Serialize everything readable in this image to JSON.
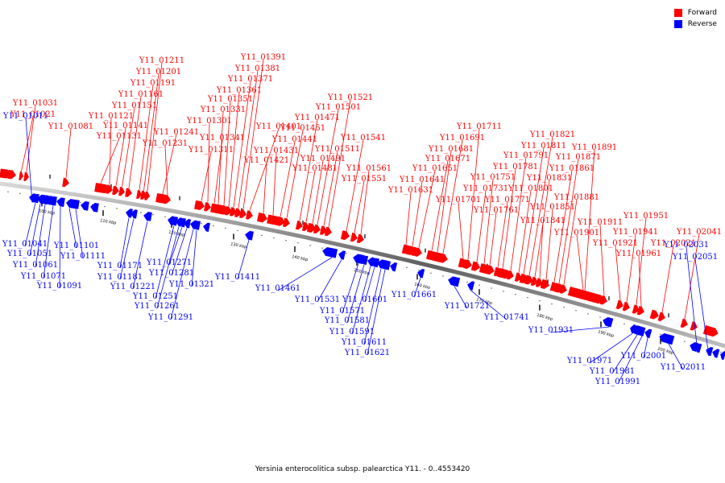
{
  "legend": {
    "forward_label": "Forward",
    "reverse_label": "Reverse",
    "forward_color": "#ff0000",
    "reverse_color": "#0000ff"
  },
  "caption": "Yersinia enterocolitica subsp. palearctica Y11. - 0..4553420",
  "scale_labels": [
    "100 kbp",
    "110 kbp",
    "120 kbp",
    "130 kbp",
    "140 kbp",
    "150 kbp",
    "160 kbp",
    "170 kbp",
    "180 kbp",
    "190 kbp",
    "200 kbp"
  ],
  "forward_genes": [
    "Y11_01031",
    "Y11_01021",
    "Y11_01081",
    "Y11_01131",
    "Y11_01121",
    "Y11_01141",
    "Y11_01151",
    "Y11_01161",
    "Y11_01191",
    "Y11_01201",
    "Y11_01211",
    "Y11_01241",
    "Y11_01231",
    "Y11_01311",
    "Y11_01301",
    "Y11_01341",
    "Y11_01331",
    "Y11_01351",
    "Y11_01361",
    "Y11_01371",
    "Y11_01381",
    "Y11_01391",
    "Y11_01401",
    "Y11_01421",
    "Y11_01431",
    "Y11_01441",
    "Y11_01451",
    "Y11_01471",
    "Y11_01481",
    "Y11_01491",
    "Y11_01501",
    "Y11_01511",
    "Y11_01521",
    "Y11_01541",
    "Y11_01551",
    "Y11_01561",
    "Y11_01631",
    "Y11_01641",
    "Y11_01651",
    "Y11_01671",
    "Y11_01681",
    "Y11_01691",
    "Y11_01701",
    "Y11_01711",
    "Y11_01731",
    "Y11_01751",
    "Y11_01761",
    "Y11_01771",
    "Y11_01781",
    "Y11_01791",
    "Y11_01801",
    "Y11_01811",
    "Y11_01821",
    "Y11_01831",
    "Y11_01841",
    "Y11_01851",
    "Y11_01861",
    "Y11_01871",
    "Y11_01881",
    "Y11_01891",
    "Y11_01901",
    "Y11_01911",
    "Y11_01921",
    "Y11_01941",
    "Y11_01951",
    "Y11_01961",
    "Y11_02021",
    "Y11_02041"
  ],
  "reverse_genes": [
    "Y11_01011",
    "Y11_01041",
    "Y11_01051",
    "Y11_01061",
    "Y11_01071",
    "Y11_01091",
    "Y11_01101",
    "Y11_01111",
    "Y11_01171",
    "Y11_01181",
    "Y11_01221",
    "Y11_01251",
    "Y11_01261",
    "Y11_01271",
    "Y11_01281",
    "Y11_01291",
    "Y11_01321",
    "Y11_01411",
    "Y11_01461",
    "Y11_01531",
    "Y11_01571",
    "Y11_01581",
    "Y11_01591",
    "Y11_01601",
    "Y11_01611",
    "Y11_01621",
    "Y11_01661",
    "Y11_01721",
    "Y11_01741",
    "Y11_01931",
    "Y11_01971",
    "Y11_01981",
    "Y11_01991",
    "Y11_02001",
    "Y11_02011",
    "Y11_02031",
    "Y11_02051"
  ]
}
